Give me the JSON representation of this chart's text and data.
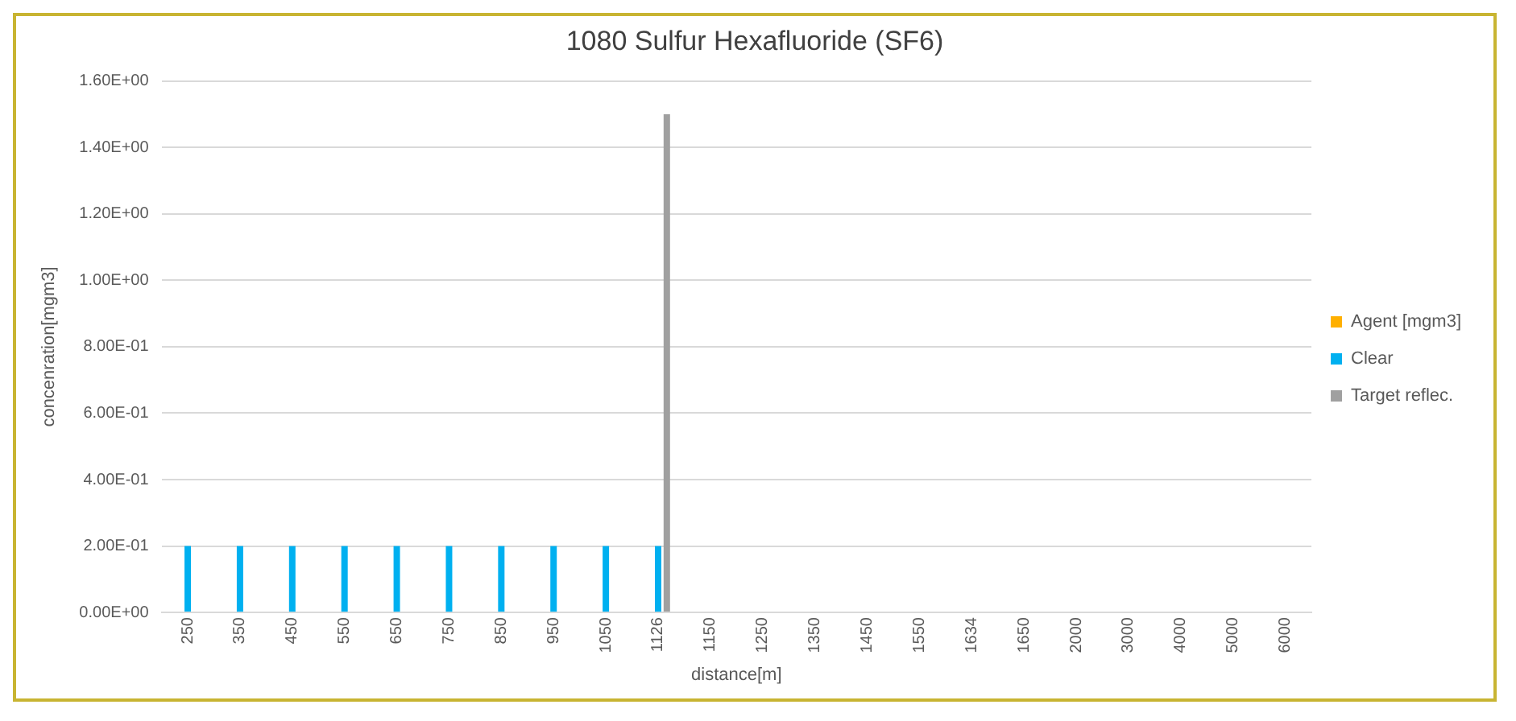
{
  "chart_data": {
    "type": "bar",
    "title": "1080 Sulfur Hexafluoride (SF6)",
    "xlabel": "distance[m]",
    "ylabel": "concenration[mgm3]",
    "categories": [
      "250",
      "350",
      "450",
      "550",
      "650",
      "750",
      "850",
      "950",
      "1050",
      "1126",
      "1150",
      "1250",
      "1350",
      "1450",
      "1550",
      "1634",
      "1650",
      "2000",
      "3000",
      "4000",
      "5000",
      "6000"
    ],
    "series": [
      {
        "name": "Agent [mgm3]",
        "color": "#ffb000",
        "values": [
          0,
          0,
          0,
          0,
          0,
          0,
          0,
          0,
          0,
          0,
          0,
          0,
          0,
          0,
          0,
          0,
          0,
          0,
          0,
          0,
          0,
          0
        ]
      },
      {
        "name": "Clear",
        "color": "#00b0f0",
        "values": [
          0.2,
          0.2,
          0.2,
          0.2,
          0.2,
          0.2,
          0.2,
          0.2,
          0.2,
          0.2,
          null,
          null,
          null,
          null,
          null,
          null,
          null,
          null,
          null,
          null,
          null,
          null
        ]
      },
      {
        "name": "Target reflec.",
        "color": "#a0a0a0",
        "values": [
          null,
          null,
          null,
          null,
          null,
          null,
          null,
          null,
          null,
          1.5,
          null,
          null,
          null,
          null,
          null,
          null,
          null,
          null,
          null,
          null,
          null,
          null
        ]
      }
    ],
    "ylim": [
      0,
      1.6
    ],
    "yticks": [
      {
        "value": 0,
        "label": "0.00E+00"
      },
      {
        "value": 0.2,
        "label": "2.00E-01"
      },
      {
        "value": 0.4,
        "label": "4.00E-01"
      },
      {
        "value": 0.6,
        "label": "6.00E-01"
      },
      {
        "value": 0.8,
        "label": "8.00E-01"
      },
      {
        "value": 1.0,
        "label": "1.00E+00"
      },
      {
        "value": 1.2,
        "label": "1.20E+00"
      },
      {
        "value": 1.4,
        "label": "1.40E+00"
      },
      {
        "value": 1.6,
        "label": "1.60E+00"
      }
    ],
    "grid": "y",
    "legend": "right"
  }
}
